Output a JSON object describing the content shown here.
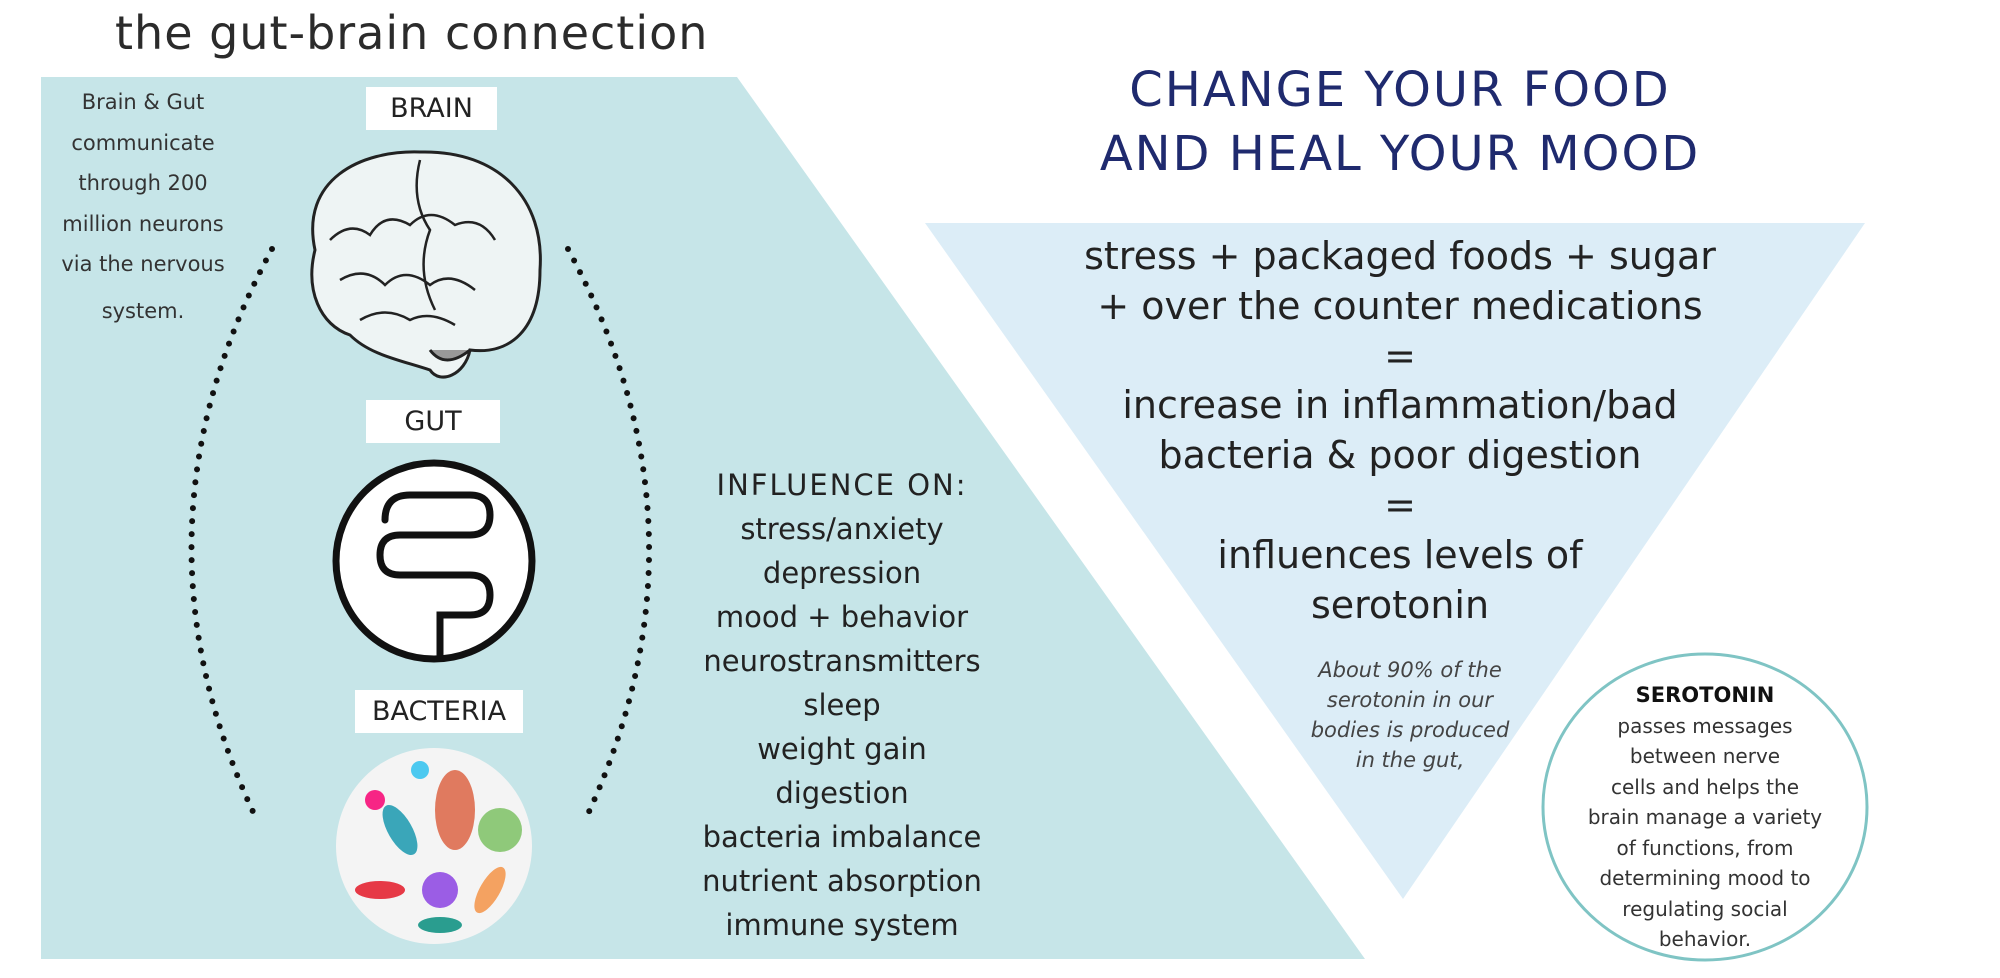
{
  "title": "the gut-brain connection",
  "side_note": [
    "Brain & Gut",
    "communicate",
    "through 200",
    "million neurons",
    "via the nervous",
    "system."
  ],
  "labels": {
    "brain": "BRAIN",
    "gut": "GUT",
    "bacteria": "BACTERIA"
  },
  "icons": {
    "brain": "brain-illustration",
    "gut": "intestine-icon",
    "bacteria": "bacteria-circle-illustration"
  },
  "influence": {
    "heading": "INFLUENCE ON:",
    "items": [
      "stress/anxiety",
      "depression",
      "mood + behavior",
      "neurostransmitters",
      "sleep",
      "weight gain",
      "digestion",
      "bacteria imbalance",
      "nutrient absorption",
      "immune system"
    ]
  },
  "heading": [
    "CHANGE YOUR FOOD",
    "AND HEAL YOUR MOOD"
  ],
  "triangle_lines": [
    "stress + packaged foods + sugar",
    "+ over the counter medications",
    "=",
    "increase in inflammation/bad",
    "bacteria & poor digestion",
    "=",
    "influences levels of",
    "serotonin"
  ],
  "note_lines": [
    "About 90% of the",
    "serotonin in our",
    "bodies is produced",
    "in the gut,"
  ],
  "serotonin": {
    "title": "SEROTONIN",
    "lines": [
      "passes messages",
      "between nerve",
      "cells and helps the",
      "brain manage a variety",
      "of functions, from",
      "determining mood to",
      "regulating social",
      "behavior."
    ]
  },
  "colors": {
    "panel": "#c6e5e8",
    "triangle": "#dcedf7",
    "heading": "#1f2a6e",
    "circle_border": "#7fc4c4"
  }
}
